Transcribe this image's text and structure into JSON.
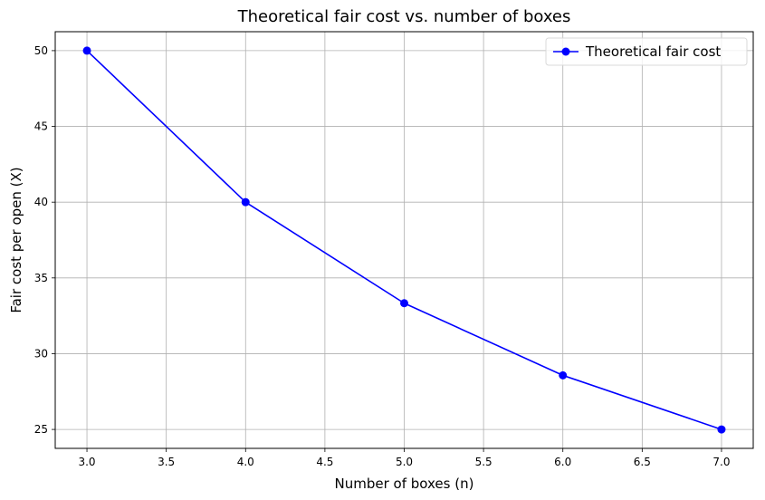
{
  "chart_data": {
    "type": "line",
    "title": "Theoretical fair cost vs. number of boxes",
    "xlabel": "Number of boxes (n)",
    "ylabel": "Fair cost per open (X)",
    "x": [
      3,
      4,
      5,
      6,
      7
    ],
    "series": [
      {
        "name": "Theoretical fair cost",
        "values": [
          50,
          40,
          33.33,
          28.57,
          25
        ],
        "color": "#0000ff",
        "marker": "circle"
      }
    ],
    "xlim": [
      2.8,
      7.2
    ],
    "ylim": [
      23.75,
      51.25
    ],
    "xticks": [
      3.0,
      3.5,
      4.0,
      4.5,
      5.0,
      5.5,
      6.0,
      6.5,
      7.0
    ],
    "xtick_labels": [
      "3.0",
      "3.5",
      "4.0",
      "4.5",
      "5.0",
      "5.5",
      "6.0",
      "6.5",
      "7.0"
    ],
    "yticks": [
      25,
      30,
      35,
      40,
      45,
      50
    ],
    "ytick_labels": [
      "25",
      "30",
      "35",
      "40",
      "45",
      "50"
    ],
    "grid": true,
    "legend_position": "top-right",
    "grid_color": "#b0b0b0",
    "axis_color": "#000000"
  }
}
